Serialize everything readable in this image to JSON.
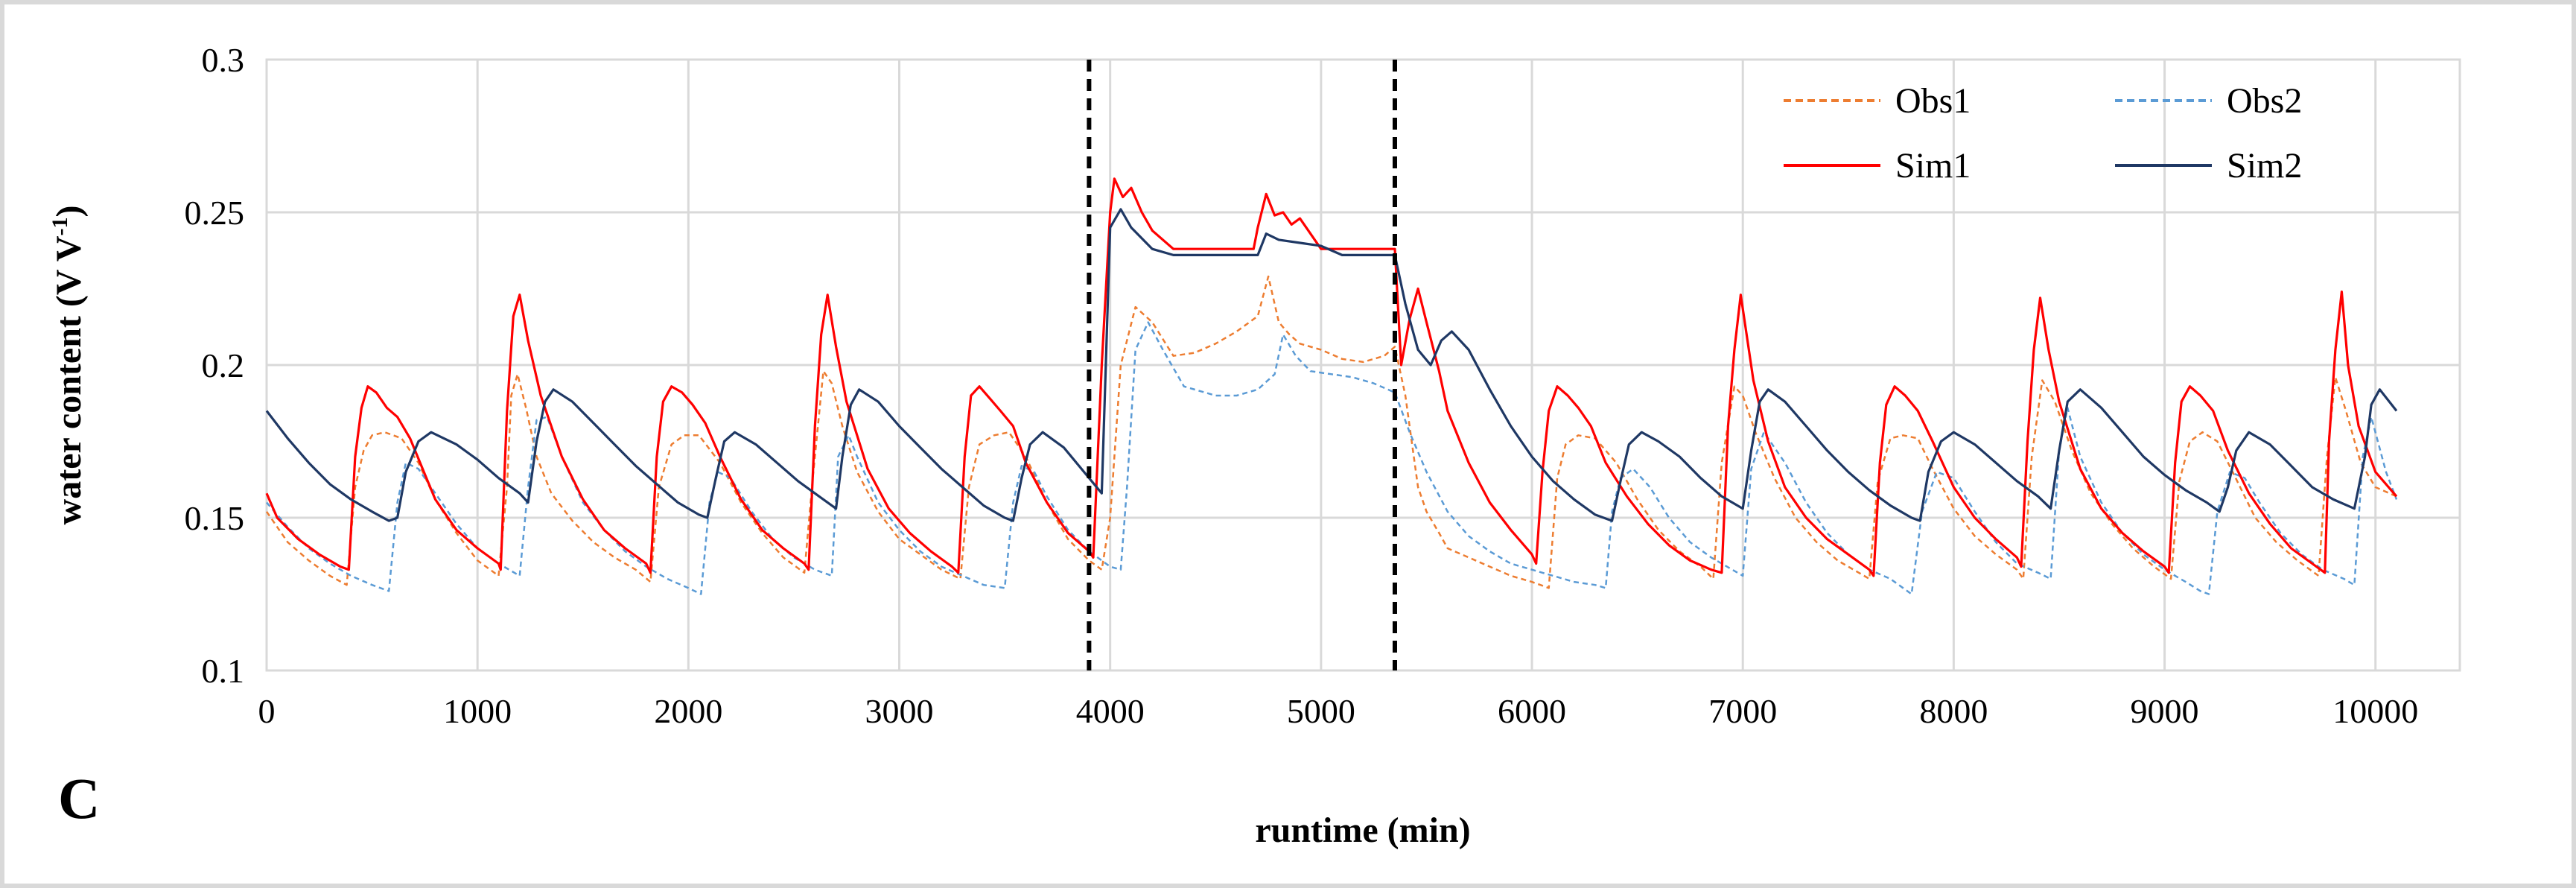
{
  "chart_data": {
    "type": "line",
    "panel_label": "C",
    "title": "",
    "xlabel": "runtime (min)",
    "ylabel_main": "water content (V V",
    "ylabel_sup": "-1",
    "ylabel_close": ")",
    "xlim": [
      0,
      10400
    ],
    "ylim": [
      0.1,
      0.3
    ],
    "xticks": [
      0,
      1000,
      2000,
      3000,
      4000,
      5000,
      6000,
      7000,
      8000,
      9000,
      10000
    ],
    "xtick_labels": [
      "0",
      "1000",
      "2000",
      "3000",
      "4000",
      "5000",
      "6000",
      "7000",
      "8000",
      "9000",
      "10000"
    ],
    "yticks": [
      0.1,
      0.15,
      0.2,
      0.25,
      0.3
    ],
    "ytick_labels": [
      "0.1",
      "0.15",
      "0.2",
      "0.25",
      "0.3"
    ],
    "grid": true,
    "legend_position": "top-right",
    "vlines": [
      {
        "x": 3900,
        "style": "dashed",
        "color": "#000000"
      },
      {
        "x": 5350,
        "style": "dashed",
        "color": "#000000"
      }
    ],
    "series": [
      {
        "name": "Obs1",
        "color": "#ed7d31",
        "dash": "dashed",
        "x": [
          0,
          100,
          200,
          300,
          380,
          420,
          460,
          500,
          560,
          640,
          720,
          800,
          900,
          1000,
          1100,
          1140,
          1160,
          1190,
          1230,
          1280,
          1350,
          1450,
          1550,
          1650,
          1750,
          1820,
          1860,
          1920,
          1980,
          2050,
          2150,
          2250,
          2350,
          2450,
          2550,
          2590,
          2640,
          2680,
          2730,
          2800,
          2900,
          3000,
          3100,
          3200,
          3290,
          3330,
          3380,
          3450,
          3520,
          3600,
          3700,
          3800,
          3900,
          3960,
          4000,
          4050,
          4120,
          4200,
          4300,
          4400,
          4500,
          4600,
          4700,
          4750,
          4800,
          4850,
          4900,
          5000,
          5100,
          5200,
          5300,
          5350,
          5400,
          5460,
          5500,
          5560,
          5600,
          5700,
          5800,
          5900,
          6000,
          6080,
          6120,
          6160,
          6220,
          6300,
          6400,
          6500,
          6600,
          6700,
          6800,
          6860,
          6900,
          6960,
          7000,
          7060,
          7150,
          7250,
          7350,
          7450,
          7550,
          7600,
          7640,
          7700,
          7760,
          7830,
          7900,
          8000,
          8100,
          8200,
          8300,
          8330,
          8370,
          8420,
          8480,
          8560,
          8650,
          8750,
          8850,
          8950,
          9030,
          9070,
          9120,
          9180,
          9250,
          9330,
          9430,
          9530,
          9630,
          9730,
          9770,
          9810,
          9860,
          9930,
          10000,
          10100
        ],
        "y": [
          0.152,
          0.142,
          0.136,
          0.131,
          0.128,
          0.16,
          0.172,
          0.177,
          0.178,
          0.176,
          0.168,
          0.156,
          0.145,
          0.136,
          0.131,
          0.16,
          0.19,
          0.197,
          0.186,
          0.17,
          0.158,
          0.149,
          0.142,
          0.137,
          0.133,
          0.129,
          0.16,
          0.174,
          0.177,
          0.177,
          0.168,
          0.155,
          0.145,
          0.137,
          0.132,
          0.163,
          0.198,
          0.194,
          0.18,
          0.165,
          0.152,
          0.143,
          0.138,
          0.133,
          0.13,
          0.16,
          0.174,
          0.177,
          0.178,
          0.17,
          0.155,
          0.143,
          0.136,
          0.133,
          0.15,
          0.2,
          0.219,
          0.214,
          0.203,
          0.204,
          0.207,
          0.211,
          0.216,
          0.229,
          0.214,
          0.21,
          0.207,
          0.205,
          0.202,
          0.201,
          0.203,
          0.206,
          0.19,
          0.16,
          0.152,
          0.145,
          0.14,
          0.137,
          0.134,
          0.131,
          0.129,
          0.127,
          0.163,
          0.174,
          0.177,
          0.176,
          0.168,
          0.156,
          0.146,
          0.139,
          0.134,
          0.13,
          0.168,
          0.193,
          0.19,
          0.178,
          0.163,
          0.15,
          0.142,
          0.136,
          0.132,
          0.13,
          0.162,
          0.176,
          0.177,
          0.176,
          0.166,
          0.153,
          0.144,
          0.138,
          0.133,
          0.13,
          0.17,
          0.195,
          0.188,
          0.172,
          0.158,
          0.148,
          0.14,
          0.134,
          0.13,
          0.162,
          0.175,
          0.178,
          0.175,
          0.164,
          0.15,
          0.142,
          0.136,
          0.131,
          0.17,
          0.196,
          0.185,
          0.168,
          0.16,
          0.157
        ]
      },
      {
        "name": "Obs2",
        "color": "#5b9bd5",
        "dash": "dashed",
        "x": [
          0,
          100,
          200,
          300,
          400,
          500,
          580,
          620,
          660,
          720,
          800,
          900,
          1000,
          1100,
          1200,
          1240,
          1280,
          1330,
          1400,
          1500,
          1600,
          1700,
          1800,
          1900,
          2000,
          2060,
          2100,
          2140,
          2200,
          2300,
          2400,
          2500,
          2600,
          2680,
          2710,
          2760,
          2800,
          2900,
          3000,
          3100,
          3200,
          3300,
          3400,
          3500,
          3540,
          3580,
          3640,
          3700,
          3800,
          3900,
          3960,
          4000,
          4050,
          4080,
          4120,
          4180,
          4250,
          4350,
          4500,
          4600,
          4700,
          4780,
          4820,
          4880,
          4950,
          5050,
          5150,
          5250,
          5350,
          5420,
          5500,
          5600,
          5700,
          5800,
          5900,
          6000,
          6100,
          6200,
          6300,
          6350,
          6380,
          6420,
          6480,
          6560,
          6650,
          6750,
          6850,
          6950,
          7000,
          7040,
          7100,
          7200,
          7300,
          7400,
          7500,
          7600,
          7700,
          7760,
          7800,
          7850,
          7920,
          8000,
          8100,
          8200,
          8300,
          8400,
          8460,
          8500,
          8540,
          8600,
          8700,
          8800,
          8900,
          9000,
          9100,
          9170,
          9210,
          9250,
          9310,
          9380,
          9450,
          9550,
          9650,
          9750,
          9850,
          9900,
          9940,
          9980,
          10050,
          10100
        ],
        "y": [
          0.155,
          0.147,
          0.14,
          0.135,
          0.131,
          0.128,
          0.126,
          0.155,
          0.168,
          0.166,
          0.158,
          0.148,
          0.14,
          0.135,
          0.131,
          0.16,
          0.182,
          0.183,
          0.17,
          0.155,
          0.146,
          0.139,
          0.134,
          0.13,
          0.127,
          0.125,
          0.155,
          0.165,
          0.163,
          0.152,
          0.143,
          0.137,
          0.133,
          0.131,
          0.17,
          0.177,
          0.17,
          0.155,
          0.146,
          0.139,
          0.134,
          0.131,
          0.128,
          0.127,
          0.155,
          0.167,
          0.165,
          0.157,
          0.146,
          0.139,
          0.136,
          0.134,
          0.133,
          0.16,
          0.205,
          0.214,
          0.205,
          0.193,
          0.19,
          0.19,
          0.192,
          0.197,
          0.21,
          0.203,
          0.198,
          0.197,
          0.196,
          0.194,
          0.191,
          0.178,
          0.165,
          0.152,
          0.144,
          0.139,
          0.135,
          0.133,
          0.131,
          0.129,
          0.128,
          0.127,
          0.152,
          0.163,
          0.166,
          0.16,
          0.15,
          0.142,
          0.137,
          0.133,
          0.131,
          0.166,
          0.178,
          0.168,
          0.155,
          0.145,
          0.138,
          0.133,
          0.13,
          0.127,
          0.125,
          0.152,
          0.165,
          0.163,
          0.152,
          0.142,
          0.135,
          0.132,
          0.13,
          0.172,
          0.186,
          0.17,
          0.155,
          0.145,
          0.138,
          0.133,
          0.129,
          0.126,
          0.125,
          0.152,
          0.165,
          0.163,
          0.155,
          0.145,
          0.138,
          0.133,
          0.13,
          0.128,
          0.17,
          0.183,
          0.165,
          0.156
        ]
      },
      {
        "name": "Sim1",
        "color": "#ff0000",
        "dash": "solid",
        "x": [
          0,
          50,
          150,
          250,
          350,
          390,
          420,
          450,
          480,
          520,
          570,
          620,
          680,
          740,
          800,
          900,
          1000,
          1100,
          1110,
          1140,
          1170,
          1200,
          1240,
          1300,
          1400,
          1500,
          1600,
          1700,
          1800,
          1820,
          1850,
          1880,
          1920,
          1970,
          2020,
          2080,
          2150,
          2250,
          2350,
          2450,
          2550,
          2570,
          2600,
          2630,
          2660,
          2700,
          2750,
          2850,
          2950,
          3050,
          3150,
          3250,
          3280,
          3310,
          3340,
          3380,
          3430,
          3480,
          3540,
          3600,
          3700,
          3800,
          3900,
          3920,
          3960,
          4000,
          4020,
          4060,
          4100,
          4150,
          4200,
          4300,
          4500,
          4680,
          4700,
          4740,
          4780,
          4820,
          4860,
          4900,
          4950,
          5000,
          5100,
          5200,
          5300,
          5350,
          5380,
          5420,
          5460,
          5500,
          5560,
          5600,
          5700,
          5800,
          5900,
          6000,
          6020,
          6050,
          6080,
          6120,
          6170,
          6220,
          6280,
          6350,
          6450,
          6550,
          6650,
          6750,
          6850,
          6900,
          6930,
          6960,
          6990,
          7050,
          7120,
          7200,
          7300,
          7400,
          7500,
          7600,
          7620,
          7650,
          7680,
          7720,
          7770,
          7830,
          7900,
          8000,
          8100,
          8200,
          8300,
          8320,
          8350,
          8380,
          8410,
          8450,
          8500,
          8600,
          8700,
          8800,
          8900,
          9000,
          9020,
          9050,
          9080,
          9120,
          9170,
          9230,
          9300,
          9400,
          9500,
          9600,
          9700,
          9760,
          9780,
          9810,
          9840,
          9870,
          9920,
          10000,
          10100
        ],
        "y": [
          0.158,
          0.15,
          0.143,
          0.138,
          0.134,
          0.133,
          0.17,
          0.186,
          0.193,
          0.191,
          0.186,
          0.183,
          0.176,
          0.166,
          0.156,
          0.146,
          0.14,
          0.135,
          0.133,
          0.185,
          0.216,
          0.223,
          0.208,
          0.19,
          0.17,
          0.156,
          0.146,
          0.14,
          0.135,
          0.132,
          0.17,
          0.188,
          0.193,
          0.191,
          0.187,
          0.181,
          0.17,
          0.156,
          0.146,
          0.14,
          0.135,
          0.133,
          0.18,
          0.21,
          0.223,
          0.206,
          0.188,
          0.166,
          0.153,
          0.145,
          0.139,
          0.134,
          0.132,
          0.17,
          0.19,
          0.193,
          0.189,
          0.185,
          0.18,
          0.168,
          0.155,
          0.145,
          0.139,
          0.137,
          0.2,
          0.25,
          0.261,
          0.255,
          0.258,
          0.25,
          0.244,
          0.238,
          0.238,
          0.238,
          0.245,
          0.256,
          0.249,
          0.25,
          0.246,
          0.248,
          0.243,
          0.238,
          0.238,
          0.238,
          0.238,
          0.238,
          0.2,
          0.215,
          0.225,
          0.214,
          0.198,
          0.185,
          0.168,
          0.155,
          0.146,
          0.138,
          0.135,
          0.165,
          0.185,
          0.193,
          0.19,
          0.186,
          0.18,
          0.168,
          0.157,
          0.148,
          0.141,
          0.136,
          0.133,
          0.132,
          0.18,
          0.205,
          0.223,
          0.195,
          0.175,
          0.16,
          0.15,
          0.143,
          0.138,
          0.133,
          0.131,
          0.168,
          0.187,
          0.193,
          0.19,
          0.185,
          0.175,
          0.16,
          0.15,
          0.143,
          0.137,
          0.134,
          0.175,
          0.205,
          0.222,
          0.205,
          0.188,
          0.166,
          0.153,
          0.145,
          0.139,
          0.134,
          0.132,
          0.168,
          0.188,
          0.193,
          0.19,
          0.185,
          0.172,
          0.158,
          0.148,
          0.14,
          0.135,
          0.132,
          0.175,
          0.205,
          0.224,
          0.2,
          0.18,
          0.165,
          0.157
        ]
      },
      {
        "name": "Sim2",
        "color": "#1f3864",
        "dash": "solid",
        "x": [
          0,
          100,
          200,
          300,
          400,
          500,
          580,
          620,
          660,
          720,
          780,
          900,
          1000,
          1100,
          1200,
          1240,
          1280,
          1320,
          1360,
          1450,
          1550,
          1650,
          1750,
          1850,
          1950,
          2050,
          2090,
          2130,
          2170,
          2220,
          2320,
          2420,
          2520,
          2620,
          2700,
          2730,
          2770,
          2810,
          2900,
          3000,
          3100,
          3200,
          3300,
          3400,
          3500,
          3540,
          3580,
          3620,
          3680,
          3780,
          3900,
          3960,
          4000,
          4050,
          4100,
          4200,
          4300,
          4500,
          4700,
          4740,
          4800,
          4900,
          5000,
          5100,
          5200,
          5300,
          5350,
          5400,
          5460,
          5520,
          5570,
          5620,
          5700,
          5800,
          5900,
          6000,
          6100,
          6200,
          6300,
          6380,
          6420,
          6460,
          6520,
          6600,
          6700,
          6800,
          6900,
          7000,
          7040,
          7080,
          7120,
          7200,
          7300,
          7400,
          7500,
          7600,
          7700,
          7800,
          7840,
          7880,
          7940,
          8000,
          8100,
          8200,
          8300,
          8400,
          8460,
          8500,
          8540,
          8600,
          8700,
          8800,
          8900,
          9000,
          9100,
          9200,
          9260,
          9300,
          9340,
          9400,
          9500,
          9600,
          9700,
          9800,
          9900,
          9950,
          9980,
          10020,
          10100
        ],
        "y": [
          0.185,
          0.176,
          0.168,
          0.161,
          0.156,
          0.152,
          0.149,
          0.15,
          0.165,
          0.175,
          0.178,
          0.174,
          0.169,
          0.163,
          0.158,
          0.155,
          0.175,
          0.188,
          0.192,
          0.188,
          0.181,
          0.174,
          0.167,
          0.161,
          0.155,
          0.151,
          0.15,
          0.163,
          0.175,
          0.178,
          0.174,
          0.168,
          0.162,
          0.157,
          0.153,
          0.17,
          0.187,
          0.192,
          0.188,
          0.18,
          0.173,
          0.166,
          0.16,
          0.154,
          0.15,
          0.149,
          0.163,
          0.174,
          0.178,
          0.173,
          0.163,
          0.158,
          0.245,
          0.251,
          0.245,
          0.238,
          0.236,
          0.236,
          0.236,
          0.243,
          0.241,
          0.24,
          0.239,
          0.236,
          0.236,
          0.236,
          0.236,
          0.22,
          0.205,
          0.2,
          0.208,
          0.211,
          0.205,
          0.192,
          0.18,
          0.17,
          0.162,
          0.156,
          0.151,
          0.149,
          0.162,
          0.174,
          0.178,
          0.175,
          0.17,
          0.163,
          0.157,
          0.153,
          0.172,
          0.188,
          0.192,
          0.188,
          0.18,
          0.172,
          0.165,
          0.159,
          0.154,
          0.15,
          0.149,
          0.165,
          0.175,
          0.178,
          0.174,
          0.168,
          0.162,
          0.157,
          0.153,
          0.172,
          0.188,
          0.192,
          0.186,
          0.178,
          0.17,
          0.164,
          0.159,
          0.155,
          0.152,
          0.16,
          0.172,
          0.178,
          0.174,
          0.167,
          0.16,
          0.156,
          0.153,
          0.17,
          0.187,
          0.192,
          0.185
        ]
      }
    ]
  }
}
